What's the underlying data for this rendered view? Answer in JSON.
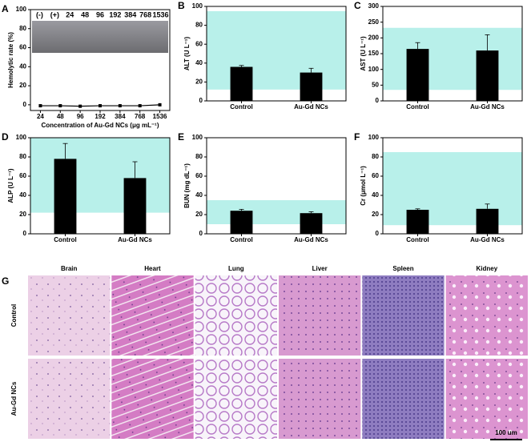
{
  "chart_data": [
    {
      "type": "line",
      "panel_label": "A",
      "x_label": "Concentration of Au-Gd NCs (μg mL⁻¹)",
      "y_label": "Hemolytic rate (%)",
      "categories": [
        "24",
        "48",
        "96",
        "192",
        "384",
        "768",
        "1536"
      ],
      "values": [
        -1,
        -1,
        -1.5,
        -1,
        -1,
        -1,
        0
      ],
      "color": "#000000",
      "ylim": [
        -6,
        100
      ],
      "yticks": [
        0,
        20,
        40,
        60,
        80,
        100
      ],
      "annotations": [
        "(-)",
        "(+)",
        "24",
        "48",
        "96",
        "192",
        "384",
        "768",
        "1536"
      ]
    },
    {
      "type": "bar",
      "panel_label": "B",
      "y_label": "ALT (U L⁻¹)",
      "categories": [
        "Control",
        "Au-Gd NCs"
      ],
      "values": [
        36,
        30
      ],
      "errors": [
        1.5,
        4.5
      ],
      "color": "#000000",
      "reference_range": [
        12,
        95
      ],
      "range_color": "#b8f0ea",
      "ylim": [
        0,
        100
      ],
      "yticks": [
        0,
        20,
        40,
        60,
        80,
        100
      ]
    },
    {
      "type": "bar",
      "panel_label": "C",
      "y_label": "AST (U L⁻¹)",
      "categories": [
        "Control",
        "Au-Gd NCs"
      ],
      "values": [
        165,
        160
      ],
      "errors": [
        20,
        50
      ],
      "color": "#000000",
      "reference_range": [
        35,
        232
      ],
      "range_color": "#b8f0ea",
      "ylim": [
        0,
        300
      ],
      "yticks": [
        0,
        50,
        100,
        150,
        200,
        250,
        300
      ]
    },
    {
      "type": "bar",
      "panel_label": "D",
      "y_label": "ALP (U L⁻¹)",
      "categories": [
        "Control",
        "Au-Gd NCs"
      ],
      "values": [
        78,
        58
      ],
      "errors": [
        16,
        17
      ],
      "color": "#000000",
      "reference_range": [
        22,
        100
      ],
      "range_color": "#b8f0ea",
      "ylim": [
        0,
        100
      ],
      "yticks": [
        0,
        20,
        40,
        60,
        80,
        100
      ]
    },
    {
      "type": "bar",
      "panel_label": "E",
      "y_label": "BUN (mg dL⁻¹)",
      "categories": [
        "Control",
        "Au-Gd NCs"
      ],
      "values": [
        24,
        21.5
      ],
      "errors": [
        1.5,
        1.5
      ],
      "color": "#000000",
      "reference_range": [
        10,
        35
      ],
      "range_color": "#b8f0ea",
      "ylim": [
        0,
        100
      ],
      "yticks": [
        0,
        20,
        40,
        60,
        80,
        100
      ]
    },
    {
      "type": "bar",
      "panel_label": "F",
      "y_label": "Cr (μmol L⁻¹)",
      "categories": [
        "Control",
        "Au-Gd NCs"
      ],
      "values": [
        25,
        26
      ],
      "errors": [
        1,
        5
      ],
      "color": "#000000",
      "reference_range": [
        9,
        85
      ],
      "range_color": "#b8f0ea",
      "ylim": [
        0,
        100
      ],
      "yticks": [
        0,
        20,
        40,
        60,
        80,
        100
      ]
    }
  ],
  "histology": {
    "panel_label": "G",
    "columns": [
      "Brain",
      "Heart",
      "Lung",
      "Liver",
      "Spleen",
      "Kidney"
    ],
    "rows": [
      "Control",
      "Au-Gd NCs"
    ],
    "scale_bar": "100 um"
  }
}
